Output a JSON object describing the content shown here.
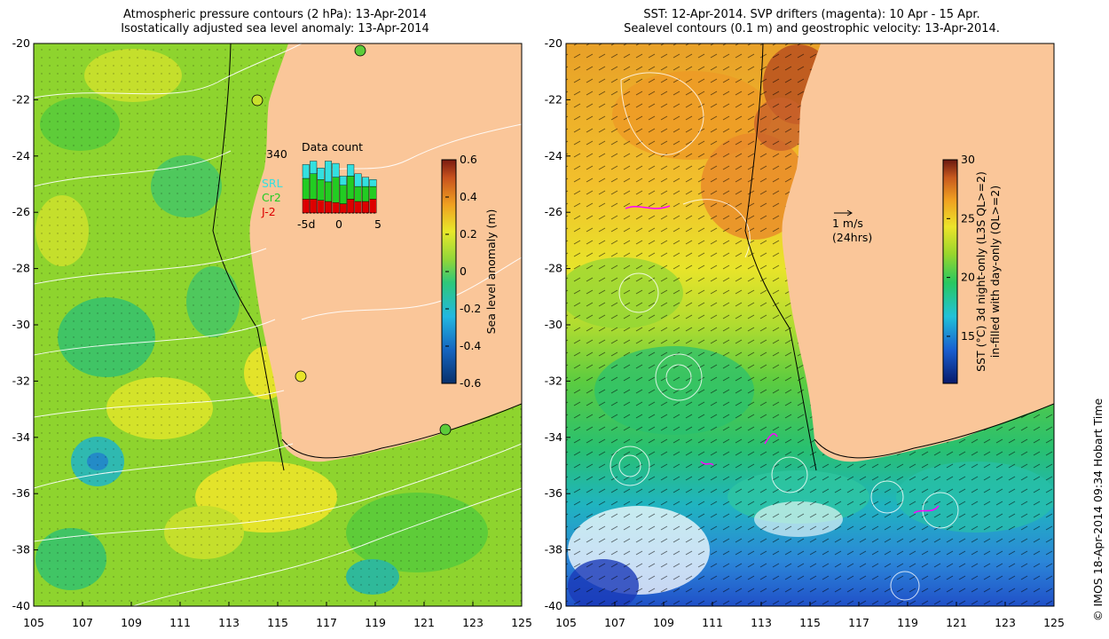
{
  "left_map": {
    "title_line1": "Atmospheric pressure contours (2 hPa): 13-Apr-2014",
    "title_line2": "Isostatically adjusted sea level anomaly: 13-Apr-2014",
    "lat_ticks": [
      "-20",
      "-22",
      "-24",
      "-26",
      "-28",
      "-30",
      "-32",
      "-34",
      "-36",
      "-38",
      "-40"
    ],
    "lon_ticks": [
      "105",
      "107",
      "109",
      "111",
      "113",
      "115",
      "117",
      "119",
      "121",
      "123",
      "125"
    ],
    "colorbar": {
      "label": "Sea level anomaly (m)",
      "ticks": [
        "0.6",
        "0.4",
        "0.2",
        "0",
        "-0.2",
        "-0.4",
        "-0.6"
      ],
      "range": [
        -0.6,
        0.6
      ]
    },
    "inset": {
      "title": "Data count",
      "ymax_label": "340",
      "x_ticks": [
        "-5d",
        "0",
        "5"
      ],
      "legend": [
        {
          "label": "SRL",
          "color": "#33e0e0"
        },
        {
          "label": "Cr2",
          "color": "#22cc22"
        },
        {
          "label": "J-2",
          "color": "#dd0000"
        }
      ],
      "bars": [
        {
          "srl": 12,
          "cr2": 18,
          "j2": 12
        },
        {
          "srl": 11,
          "cr2": 22,
          "j2": 12
        },
        {
          "srl": 10,
          "cr2": 18,
          "j2": 11
        },
        {
          "srl": 18,
          "cr2": 17,
          "j2": 10
        },
        {
          "srl": 12,
          "cr2": 22,
          "j2": 9
        },
        {
          "srl": 8,
          "cr2": 16,
          "j2": 8
        },
        {
          "srl": 10,
          "cr2": 20,
          "j2": 12
        },
        {
          "srl": 11,
          "cr2": 13,
          "j2": 10
        },
        {
          "srl": 8,
          "cr2": 13,
          "j2": 10
        },
        {
          "srl": 6,
          "cr2": 11,
          "j2": 12
        }
      ]
    },
    "colors": {
      "land": "#fac699",
      "coast_line": "#000000",
      "pressure_contour": "#ffffff"
    }
  },
  "right_map": {
    "title_line1": "SST: 12-Apr-2014. SVP drifters (magenta): 10 Apr - 15 Apr.",
    "title_line2": "Sealevel contours (0.1 m) and geostrophic velocity: 13-Apr-2014.",
    "lat_ticks": [
      "-20",
      "-22",
      "-24",
      "-26",
      "-28",
      "-30",
      "-32",
      "-34",
      "-36",
      "-38",
      "-40"
    ],
    "lon_ticks": [
      "105",
      "107",
      "109",
      "111",
      "113",
      "115",
      "117",
      "119",
      "121",
      "123",
      "125"
    ],
    "velocity_scale": {
      "label": "1 m/s",
      "sublabel": "(24hrs)"
    },
    "colorbar": {
      "label_line1": "SST (°C)  3d night-only (L3S QL>=2)",
      "label_line2": "in-filled with day-only (QL>=2)",
      "ticks": [
        "30",
        "25",
        "20",
        "15"
      ],
      "range": [
        11,
        30
      ]
    },
    "colors": {
      "land": "#fac699",
      "drifter": "#ff00ff"
    }
  },
  "credit": "© IMOS 18-Apr-2014 09:34 Hobart Time"
}
